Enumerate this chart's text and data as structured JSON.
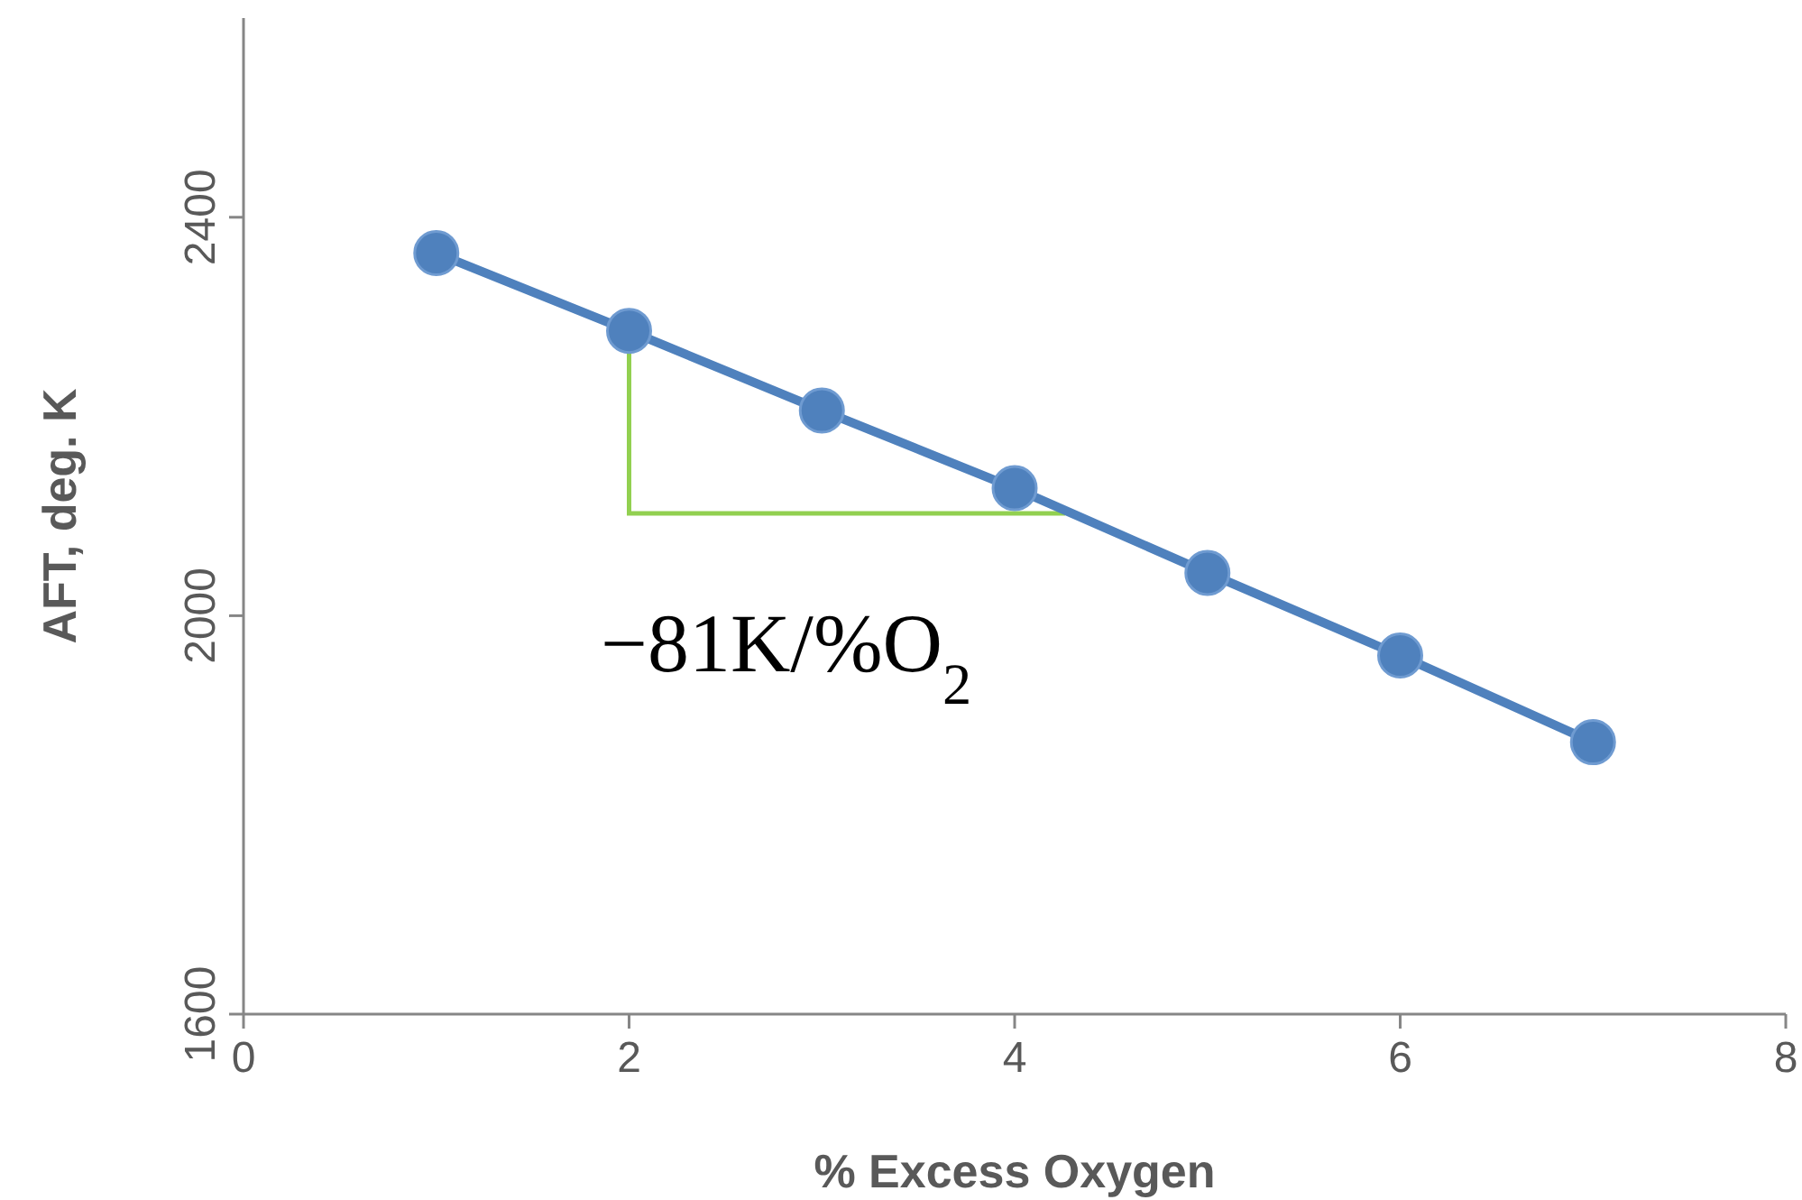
{
  "chart_data": {
    "type": "line",
    "xlabel": "% Excess Oxygen",
    "ylabel": "AFT, deg. K",
    "x": [
      1,
      2,
      3,
      4,
      5,
      6,
      7
    ],
    "series": [
      {
        "color": "#4f81bd",
        "values": [
          2364,
          2286,
          2206,
          2128,
          2043,
          1960,
          1873
        ]
      }
    ],
    "xlim": [
      0,
      8
    ],
    "xticks": [
      0,
      2,
      4,
      6,
      8
    ],
    "ylim": [
      1600,
      2600
    ],
    "yticks": [
      1600,
      2000,
      2400
    ],
    "marker": "circle",
    "line_style": "solid",
    "grid": false,
    "annotations": [
      "−81K/%O$_{2}$"
    ]
  }
}
